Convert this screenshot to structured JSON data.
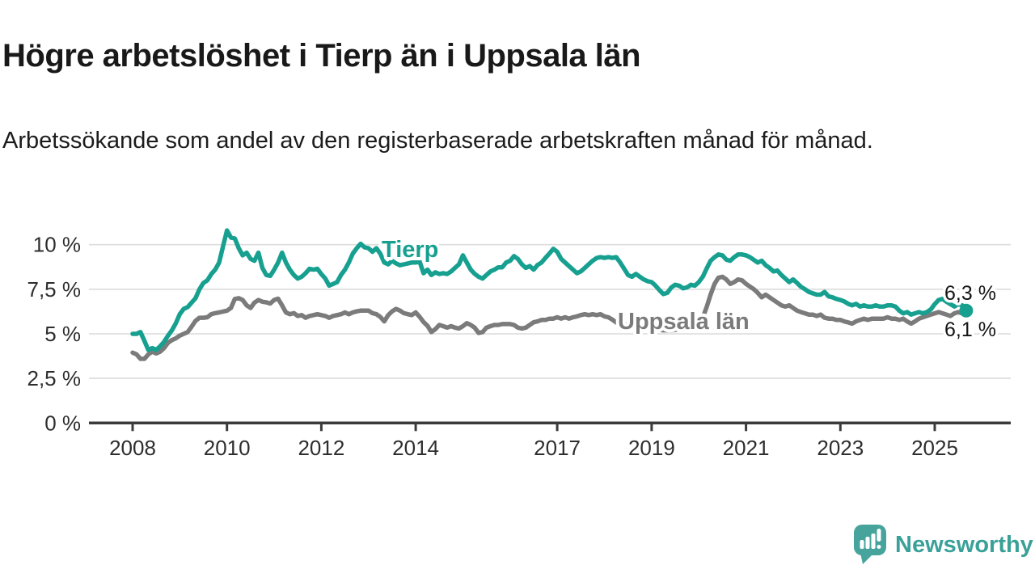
{
  "header": {
    "title": "Högre arbetslöshet i Tierp än i Uppsala län",
    "subtitle": "Arbetssökande som andel av den registerbaserade arbetskraften månad för månad."
  },
  "chart_data": {
    "type": "line",
    "grid": "horizontal",
    "legend": "inline-labels",
    "x": {
      "start_year": 2008,
      "frequency": "monthly",
      "end_period": "2025-09",
      "tick_years": [
        2008,
        2010,
        2012,
        2014,
        2017,
        2019,
        2021,
        2023,
        2025
      ]
    },
    "y": {
      "unit": "percent",
      "range": [
        0,
        11.3
      ],
      "ticks": [
        {
          "value": 0,
          "label": "0 %"
        },
        {
          "value": 2.5,
          "label": "2,5 %"
        },
        {
          "value": 5,
          "label": "5 %"
        },
        {
          "value": 7.5,
          "label": "7,5 %"
        },
        {
          "value": 10,
          "label": "10 %"
        }
      ]
    },
    "series": [
      {
        "name": "Tierp",
        "color": "#17a090",
        "end_label": "6,3 %",
        "end_value": 6.3,
        "values": [
          5.0,
          5.0,
          5.1,
          4.6,
          4.1,
          4.2,
          4.1,
          4.3,
          4.55,
          4.9,
          5.2,
          5.6,
          6.1,
          6.4,
          6.5,
          6.75,
          7.0,
          7.5,
          7.85,
          8.0,
          8.35,
          8.6,
          9.0,
          9.9,
          10.8,
          10.4,
          10.35,
          9.8,
          9.4,
          9.55,
          9.2,
          9.1,
          9.55,
          8.7,
          8.3,
          8.25,
          8.6,
          9.0,
          9.55,
          9.0,
          8.6,
          8.3,
          8.1,
          8.2,
          8.4,
          8.65,
          8.6,
          8.65,
          8.35,
          8.1,
          7.7,
          7.8,
          7.9,
          8.3,
          8.6,
          9.0,
          9.5,
          9.8,
          10.05,
          9.85,
          9.8,
          9.6,
          9.8,
          9.5,
          9.0,
          8.9,
          9.1,
          8.95,
          8.85,
          8.9,
          8.95,
          9.0,
          9.0,
          9.05,
          8.4,
          8.6,
          8.3,
          8.45,
          8.36,
          8.4,
          8.36,
          8.5,
          8.7,
          8.9,
          9.4,
          9.0,
          8.6,
          8.37,
          8.2,
          8.1,
          8.3,
          8.5,
          8.6,
          8.73,
          8.73,
          9.0,
          9.1,
          9.36,
          9.2,
          8.9,
          8.7,
          8.8,
          8.6,
          8.86,
          9.0,
          9.26,
          9.5,
          9.77,
          9.6,
          9.2,
          9.0,
          8.8,
          8.6,
          8.4,
          8.5,
          8.7,
          8.9,
          9.1,
          9.25,
          9.3,
          9.26,
          9.3,
          9.26,
          9.3,
          9.0,
          8.66,
          8.3,
          8.2,
          8.36,
          8.2,
          8.05,
          7.95,
          7.9,
          7.7,
          7.45,
          7.23,
          7.3,
          7.6,
          7.75,
          7.7,
          7.55,
          7.6,
          7.75,
          7.7,
          7.9,
          8.2,
          8.66,
          9.1,
          9.3,
          9.45,
          9.4,
          9.16,
          9.1,
          9.3,
          9.45,
          9.45,
          9.4,
          9.3,
          9.15,
          9.0,
          9.1,
          8.85,
          8.7,
          8.5,
          8.55,
          8.3,
          8.1,
          7.9,
          8.05,
          7.85,
          7.64,
          7.5,
          7.35,
          7.27,
          7.2,
          7.2,
          7.35,
          7.1,
          7.05,
          6.96,
          6.9,
          6.82,
          6.68,
          6.6,
          6.68,
          6.53,
          6.6,
          6.53,
          6.53,
          6.6,
          6.53,
          6.53,
          6.6,
          6.6,
          6.53,
          6.3,
          6.15,
          6.22,
          6.08,
          6.15,
          6.22,
          6.15,
          6.22,
          6.37,
          6.67,
          6.9,
          6.96,
          6.8,
          6.67,
          6.53,
          6.67,
          6.6,
          6.3
        ]
      },
      {
        "name": "Uppsala län",
        "color": "#7b7b7b",
        "end_label": "6,1 %",
        "end_value": 6.1,
        "values": [
          3.95,
          3.85,
          3.6,
          3.6,
          3.85,
          4.0,
          3.9,
          4.0,
          4.2,
          4.5,
          4.65,
          4.75,
          4.9,
          5.0,
          5.1,
          5.4,
          5.73,
          5.9,
          5.9,
          5.93,
          6.1,
          6.16,
          6.2,
          6.25,
          6.3,
          6.45,
          6.96,
          7.0,
          6.9,
          6.6,
          6.45,
          6.75,
          6.9,
          6.8,
          6.77,
          6.7,
          6.9,
          6.97,
          6.6,
          6.2,
          6.1,
          6.16,
          6.0,
          6.05,
          5.9,
          6.0,
          6.05,
          6.1,
          6.05,
          6.0,
          5.9,
          6.0,
          6.05,
          6.1,
          6.2,
          6.1,
          6.2,
          6.26,
          6.3,
          6.3,
          6.3,
          6.16,
          6.1,
          5.95,
          5.7,
          6.05,
          6.26,
          6.4,
          6.3,
          6.16,
          6.1,
          6.05,
          6.2,
          5.95,
          5.66,
          5.45,
          5.1,
          5.26,
          5.5,
          5.43,
          5.35,
          5.43,
          5.35,
          5.3,
          5.43,
          5.6,
          5.5,
          5.35,
          5.05,
          5.1,
          5.35,
          5.43,
          5.5,
          5.5,
          5.55,
          5.55,
          5.55,
          5.5,
          5.35,
          5.3,
          5.35,
          5.5,
          5.65,
          5.7,
          5.78,
          5.78,
          5.85,
          5.85,
          5.93,
          5.85,
          5.93,
          5.85,
          5.93,
          5.98,
          6.05,
          6.1,
          6.05,
          6.1,
          6.05,
          6.1,
          5.98,
          5.93,
          5.8,
          5.64,
          5.58,
          5.52,
          5.47,
          5.42,
          5.38,
          5.35,
          5.32,
          5.3,
          5.28,
          5.25,
          5.22,
          5.2,
          5.2,
          5.2,
          5.22,
          5.25,
          5.28,
          5.32,
          5.36,
          5.42,
          5.6,
          5.9,
          6.5,
          7.2,
          7.8,
          8.15,
          8.2,
          8.05,
          7.8,
          7.9,
          8.05,
          8.0,
          7.8,
          7.65,
          7.5,
          7.3,
          7.05,
          7.2,
          7.05,
          6.9,
          6.75,
          6.6,
          6.53,
          6.6,
          6.45,
          6.3,
          6.22,
          6.15,
          6.08,
          6.08,
          6.0,
          6.08,
          5.9,
          5.85,
          5.85,
          5.78,
          5.78,
          5.7,
          5.64,
          5.57,
          5.7,
          5.78,
          5.85,
          5.78,
          5.85,
          5.85,
          5.85,
          5.85,
          5.93,
          5.85,
          5.85,
          5.78,
          5.85,
          5.7,
          5.57,
          5.7,
          5.85,
          5.93,
          6.0,
          6.08,
          6.15,
          6.22,
          6.15,
          6.08,
          6.0,
          6.15,
          6.22,
          6.15,
          6.1
        ]
      }
    ]
  },
  "colors": {
    "tierp_line": "#17a090",
    "uppsala_line": "#7b7b7b",
    "gridline": "#dcdcdc",
    "axis": "#3b3b3b",
    "text": "#191919",
    "brand_teal": "#3aa198"
  },
  "footer": {
    "brand": "Newsworthy"
  }
}
